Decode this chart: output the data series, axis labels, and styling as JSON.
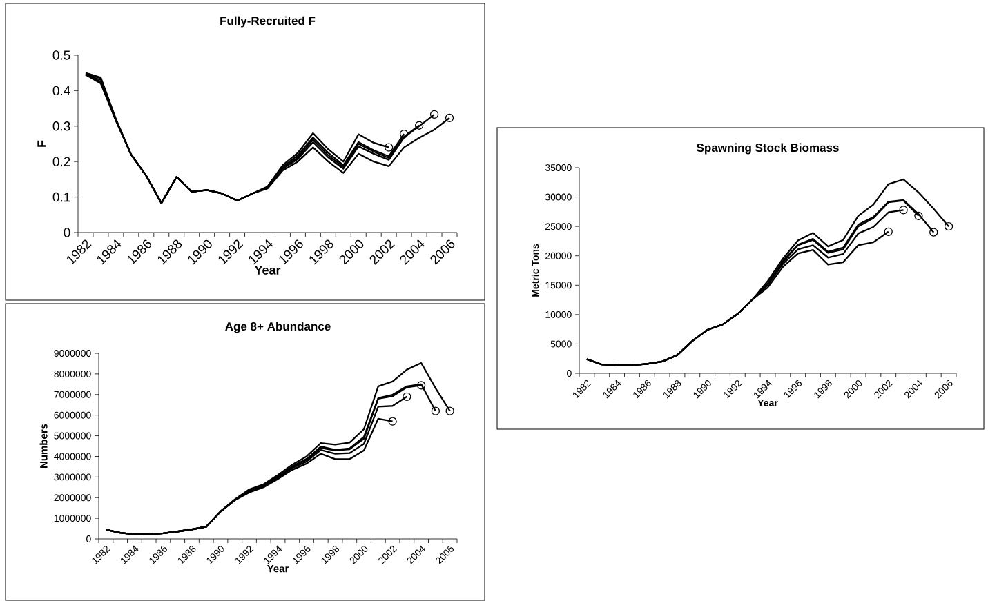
{
  "chart_data": [
    {
      "type": "line",
      "title": "Fully-Recruited F",
      "xlabel": "Year",
      "ylabel": "F",
      "line_style": "solid",
      "categories": [
        "1982",
        null,
        "1984",
        null,
        "1986",
        null,
        "1988",
        null,
        "1990",
        null,
        "1992",
        null,
        "1994",
        null,
        "1996",
        null,
        "1998",
        null,
        "2000",
        null,
        "2002",
        null,
        "2004",
        null,
        "2006"
      ],
      "ylim": [
        0,
        0.5
      ],
      "yticks": [
        0,
        0.1,
        0.2,
        0.3,
        0.4,
        0.5
      ],
      "series": [
        {
          "color": "#000000",
          "values": [
            0.45,
            0.437,
            0.32,
            0.22,
            0.16,
            0.083,
            0.157,
            0.115,
            0.12,
            0.11,
            0.09,
            0.11,
            0.13,
            0.19,
            0.225,
            0.28,
            0.235,
            0.2,
            0.277,
            0.253,
            0.24,
            null,
            null,
            null,
            null
          ]
        },
        {
          "color": "#000000",
          "values": [
            0.448,
            0.435,
            0.318,
            0.22,
            0.16,
            0.083,
            0.157,
            0.115,
            0.12,
            0.11,
            0.09,
            0.11,
            0.128,
            0.185,
            0.218,
            0.268,
            0.225,
            0.19,
            0.255,
            0.232,
            0.215,
            0.278,
            null,
            null,
            null
          ]
        },
        {
          "color": "#000000",
          "values": [
            0.446,
            0.43,
            0.317,
            0.22,
            0.16,
            0.083,
            0.157,
            0.115,
            0.12,
            0.11,
            0.09,
            0.11,
            0.127,
            0.182,
            0.212,
            0.262,
            0.218,
            0.185,
            0.25,
            0.228,
            0.21,
            0.27,
            0.302,
            null,
            null
          ]
        },
        {
          "color": "#000000",
          "values": [
            0.445,
            0.425,
            0.316,
            0.22,
            0.16,
            0.083,
            0.157,
            0.115,
            0.12,
            0.11,
            0.09,
            0.11,
            0.126,
            0.18,
            0.207,
            0.255,
            0.212,
            0.18,
            0.243,
            0.222,
            0.205,
            0.268,
            0.3,
            0.333,
            null
          ]
        },
        {
          "color": "#000000",
          "values": [
            0.445,
            0.42,
            0.315,
            0.22,
            0.16,
            0.083,
            0.157,
            0.115,
            0.12,
            0.11,
            0.09,
            0.11,
            0.124,
            0.175,
            0.2,
            0.24,
            0.2,
            0.168,
            0.222,
            0.2,
            0.187,
            0.24,
            0.267,
            0.29,
            0.323
          ]
        }
      ]
    },
    {
      "type": "line",
      "title": "Spawning Stock Biomass",
      "xlabel": "Year",
      "ylabel": "Metric Tons",
      "line_style": "solid",
      "categories": [
        "1982",
        null,
        "1984",
        null,
        "1986",
        null,
        "1988",
        null,
        "1990",
        null,
        "1992",
        null,
        "1994",
        null,
        "1996",
        null,
        "1998",
        null,
        "2000",
        null,
        "2002",
        null,
        "2004",
        null,
        "2006"
      ],
      "ylim": [
        0,
        35000
      ],
      "yticks": [
        0,
        5000,
        10000,
        15000,
        20000,
        25000,
        30000,
        35000
      ],
      "series": [
        {
          "color": "#000000",
          "values": [
            2400,
            1500,
            1400,
            1400,
            1600,
            2000,
            3100,
            5500,
            7400,
            8300,
            10100,
            12600,
            14600,
            18100,
            20400,
            21000,
            18500,
            18900,
            21800,
            22300,
            24100,
            null,
            null,
            null,
            null
          ]
        },
        {
          "color": "#000000",
          "values": [
            2400,
            1500,
            1400,
            1400,
            1600,
            2000,
            3100,
            5500,
            7400,
            8300,
            10100,
            12600,
            15000,
            18600,
            21100,
            21800,
            19700,
            20300,
            23800,
            24900,
            27400,
            27800,
            null,
            null,
            null
          ]
        },
        {
          "color": "#000000",
          "values": [
            2400,
            1500,
            1400,
            1400,
            1600,
            2000,
            3100,
            5500,
            7400,
            8300,
            10100,
            12600,
            15200,
            18900,
            21800,
            22700,
            20500,
            21100,
            25000,
            26400,
            29100,
            29400,
            26800,
            null,
            null
          ]
        },
        {
          "color": "#000000",
          "values": [
            2400,
            1500,
            1400,
            1400,
            1600,
            2000,
            3100,
            5500,
            7400,
            8300,
            10100,
            12600,
            15300,
            19100,
            21900,
            22900,
            20700,
            21400,
            25300,
            26600,
            29200,
            29500,
            27100,
            24000,
            null
          ]
        },
        {
          "color": "#000000",
          "values": [
            2400,
            1500,
            1400,
            1400,
            1600,
            2000,
            3100,
            5500,
            7400,
            8300,
            10100,
            12600,
            15700,
            19500,
            22600,
            23900,
            21600,
            22700,
            26800,
            28700,
            32200,
            33000,
            30800,
            28000,
            25000
          ]
        }
      ]
    },
    {
      "type": "line",
      "title": "Age 8+ Abundance",
      "xlabel": "Year",
      "ylabel": "Numbers",
      "line_style": "solid",
      "categories": [
        "1982",
        null,
        "1984",
        null,
        "1986",
        null,
        "1988",
        null,
        "1990",
        null,
        "1992",
        null,
        "1994",
        null,
        "1996",
        null,
        "1998",
        null,
        "2000",
        null,
        "2002",
        null,
        "2004",
        null,
        "2006"
      ],
      "ylim": [
        0,
        9000000
      ],
      "yticks": [
        0,
        1000000,
        2000000,
        3000000,
        4000000,
        5000000,
        6000000,
        7000000,
        8000000,
        9000000
      ],
      "series": [
        {
          "color": "#000000",
          "values": [
            450000,
            300000,
            220000,
            220000,
            270000,
            360000,
            460000,
            590000,
            1330000,
            1870000,
            2250000,
            2500000,
            2900000,
            3350000,
            3650000,
            4130000,
            3870000,
            3870000,
            4290000,
            5830000,
            5700000,
            null,
            null,
            null,
            null
          ]
        },
        {
          "color": "#000000",
          "values": [
            450000,
            300000,
            220000,
            220000,
            270000,
            360000,
            460000,
            590000,
            1330000,
            1880000,
            2300000,
            2550000,
            2970000,
            3430000,
            3750000,
            4310000,
            4130000,
            4160000,
            4610000,
            6410000,
            6450000,
            6900000,
            null,
            null,
            null
          ]
        },
        {
          "color": "#000000",
          "values": [
            450000,
            300000,
            220000,
            220000,
            270000,
            360000,
            460000,
            590000,
            1330000,
            1900000,
            2320000,
            2580000,
            3000000,
            3480000,
            3820000,
            4410000,
            4290000,
            4350000,
            4860000,
            6800000,
            6920000,
            7350000,
            7450000,
            null,
            null
          ]
        },
        {
          "color": "#000000",
          "values": [
            450000,
            300000,
            220000,
            220000,
            270000,
            360000,
            460000,
            590000,
            1330000,
            1900000,
            2350000,
            2600000,
            3030000,
            3520000,
            3880000,
            4480000,
            4320000,
            4390000,
            4950000,
            6830000,
            6990000,
            7400000,
            7500000,
            6200000,
            null
          ]
        },
        {
          "color": "#000000",
          "values": [
            450000,
            300000,
            220000,
            220000,
            270000,
            360000,
            460000,
            590000,
            1330000,
            1920000,
            2400000,
            2650000,
            3100000,
            3600000,
            4000000,
            4650000,
            4570000,
            4670000,
            5320000,
            7400000,
            7630000,
            8210000,
            8530000,
            7310000,
            6200000
          ]
        }
      ]
    }
  ]
}
